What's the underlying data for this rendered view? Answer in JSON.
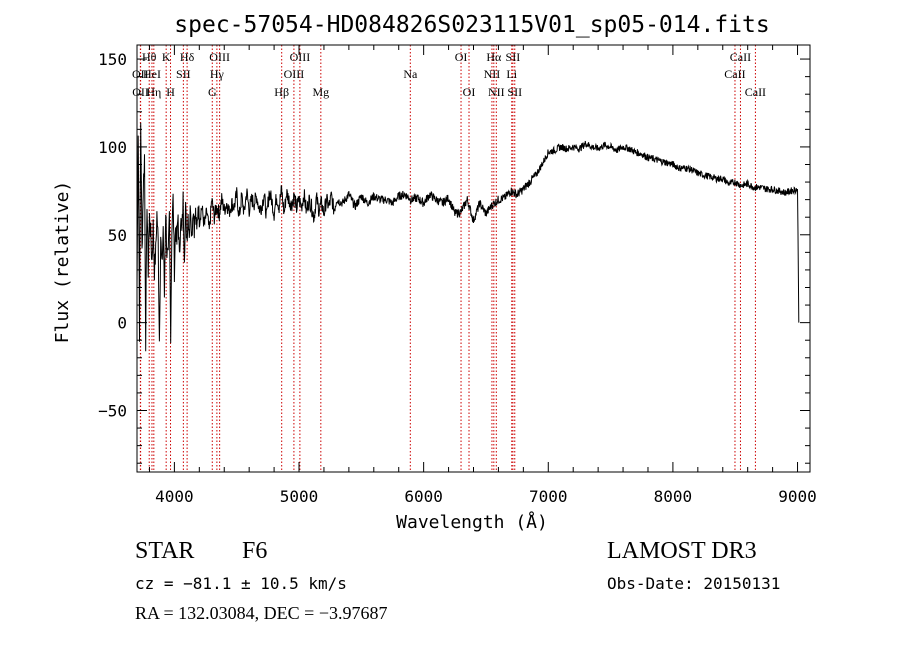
{
  "chart_data": {
    "type": "line",
    "title": "spec-57054-HD084826S023115V01_sp05-014.fits",
    "xlabel": "Wavelength (Å)",
    "ylabel": "Flux (relative)",
    "xlim": [
      3700,
      9100
    ],
    "ylim": [
      -85,
      158
    ],
    "xticks": [
      4000,
      5000,
      6000,
      7000,
      8000,
      9000
    ],
    "xtick_labels": [
      "4000",
      "5000",
      "6000",
      "7000",
      "8000",
      "9000"
    ],
    "yticks": [
      -50,
      0,
      50,
      100,
      150
    ],
    "ytick_labels": [
      "−50",
      "0",
      "50",
      "100",
      "150"
    ],
    "grid": false,
    "series": [
      {
        "name": "flux",
        "x": [
          3700,
          3710,
          3720,
          3730,
          3740,
          3750,
          3760,
          3770,
          3780,
          3790,
          3800,
          3810,
          3820,
          3830,
          3840,
          3850,
          3860,
          3870,
          3880,
          3890,
          3900,
          3910,
          3920,
          3930,
          3940,
          3950,
          3960,
          3970,
          3980,
          3990,
          4000,
          4010,
          4020,
          4030,
          4040,
          4050,
          4060,
          4070,
          4080,
          4090,
          4100,
          4110,
          4120,
          4130,
          4140,
          4150,
          4160,
          4170,
          4180,
          4190,
          4200,
          4220,
          4240,
          4260,
          4280,
          4300,
          4320,
          4340,
          4360,
          4380,
          4400,
          4420,
          4440,
          4460,
          4480,
          4500,
          4520,
          4540,
          4560,
          4580,
          4600,
          4620,
          4640,
          4660,
          4680,
          4700,
          4720,
          4740,
          4760,
          4780,
          4800,
          4820,
          4840,
          4860,
          4880,
          4900,
          4920,
          4940,
          4960,
          4980,
          5000,
          5020,
          5040,
          5060,
          5080,
          5100,
          5120,
          5140,
          5160,
          5180,
          5200,
          5220,
          5240,
          5260,
          5280,
          5300,
          5350,
          5400,
          5450,
          5500,
          5550,
          5600,
          5650,
          5700,
          5750,
          5800,
          5850,
          5900,
          5950,
          6000,
          6050,
          6100,
          6150,
          6200,
          6250,
          6300,
          6350,
          6400,
          6450,
          6500,
          6550,
          6600,
          6650,
          6700,
          6750,
          6800,
          6850,
          6900,
          6950,
          7000,
          7050,
          7100,
          7150,
          7200,
          7250,
          7300,
          7350,
          7400,
          7450,
          7500,
          7550,
          7600,
          7650,
          7700,
          7750,
          7800,
          7850,
          7900,
          7950,
          8000,
          8050,
          8100,
          8150,
          8200,
          8250,
          8300,
          8350,
          8400,
          8450,
          8500,
          8550,
          8600,
          8650,
          8700,
          8750,
          8800,
          8850,
          8900,
          8950,
          9000,
          9010
        ],
        "values": [
          20,
          110,
          -5,
          115,
          40,
          75,
          95,
          -10,
          70,
          30,
          60,
          50,
          35,
          55,
          30,
          40,
          62,
          45,
          -10,
          50,
          30,
          55,
          15,
          65,
          40,
          35,
          60,
          -5,
          55,
          70,
          30,
          55,
          45,
          62,
          35,
          60,
          50,
          70,
          40,
          64,
          48,
          62,
          52,
          68,
          50,
          66,
          55,
          62,
          50,
          68,
          58,
          66,
          55,
          63,
          52,
          70,
          60,
          66,
          62,
          70,
          64,
          68,
          63,
          68,
          66,
          73,
          60,
          72,
          62,
          75,
          64,
          70,
          68,
          72,
          65,
          66,
          73,
          60,
          74,
          70,
          62,
          72,
          66,
          76,
          62,
          74,
          70,
          67,
          72,
          65,
          70,
          66,
          73,
          63,
          70,
          66,
          60,
          71,
          64,
          68,
          62,
          70,
          66,
          72,
          64,
          70,
          68,
          73,
          66,
          72,
          68,
          72,
          70,
          70,
          68,
          72,
          73,
          70,
          71,
          68,
          73,
          70,
          68,
          71,
          62,
          63,
          70,
          58,
          68,
          62,
          67,
          70,
          71,
          75,
          73,
          76,
          80,
          84,
          90,
          97,
          98,
          100,
          99,
          100,
          99,
          102,
          100,
          99,
          101,
          100,
          98,
          100,
          99,
          97,
          96,
          94,
          93,
          92,
          91,
          90,
          88,
          88,
          87,
          85,
          84,
          83,
          82,
          82,
          79,
          80,
          78,
          79,
          77,
          77,
          76,
          76,
          75,
          74,
          75,
          76,
          0
        ]
      }
    ],
    "lines": [
      {
        "name": "OII",
        "x": 3727,
        "row": 1
      },
      {
        "name": "OII",
        "x": 3729,
        "row": 2
      },
      {
        "name": "Hθ",
        "x": 3798,
        "row": 0
      },
      {
        "name": "HeI",
        "x": 3820,
        "row": 1
      },
      {
        "name": "Hη",
        "x": 3835,
        "row": 2
      },
      {
        "name": "K",
        "x": 3934,
        "row": 0
      },
      {
        "name": "SII",
        "x": 4072,
        "row": 1
      },
      {
        "name": "H",
        "x": 3969,
        "row": 2
      },
      {
        "name": "Hδ",
        "x": 4102,
        "row": 0
      },
      {
        "name": "OIII",
        "x": 4363,
        "row": 0
      },
      {
        "name": "Hγ",
        "x": 4341,
        "row": 1
      },
      {
        "name": "G",
        "x": 4304,
        "row": 2
      },
      {
        "name": "OIII",
        "x": 5007,
        "row": 0
      },
      {
        "name": "OIII",
        "x": 4959,
        "row": 1
      },
      {
        "name": "Hβ",
        "x": 4861,
        "row": 2
      },
      {
        "name": "Mg",
        "x": 5175,
        "row": 2
      },
      {
        "name": "Na",
        "x": 5893,
        "row": 1
      },
      {
        "name": "OI",
        "x": 6300,
        "row": 0
      },
      {
        "name": "OI",
        "x": 6364,
        "row": 2
      },
      {
        "name": "Hα",
        "x": 6563,
        "row": 0
      },
      {
        "name": "SII",
        "x": 6716,
        "row": 0
      },
      {
        "name": "NII",
        "x": 6548,
        "row": 1
      },
      {
        "name": "Li",
        "x": 6707,
        "row": 1
      },
      {
        "name": "NII",
        "x": 6583,
        "row": 2
      },
      {
        "name": "SII",
        "x": 6731,
        "row": 2
      },
      {
        "name": "CaII",
        "x": 8542,
        "row": 0
      },
      {
        "name": "CaII",
        "x": 8498,
        "row": 1
      },
      {
        "name": "CaII",
        "x": 8662,
        "row": 2
      }
    ],
    "line_color": "#cc0000",
    "series_color": "#000000"
  },
  "info": {
    "object_type": "STAR",
    "subclass": "F6",
    "survey": "LAMOST DR3",
    "redshift": "cz = −81.1 ± 10.5 km/s",
    "obs_date": "Obs-Date: 20150131",
    "coords": "RA = 132.03084, DEC =  −3.97687"
  }
}
